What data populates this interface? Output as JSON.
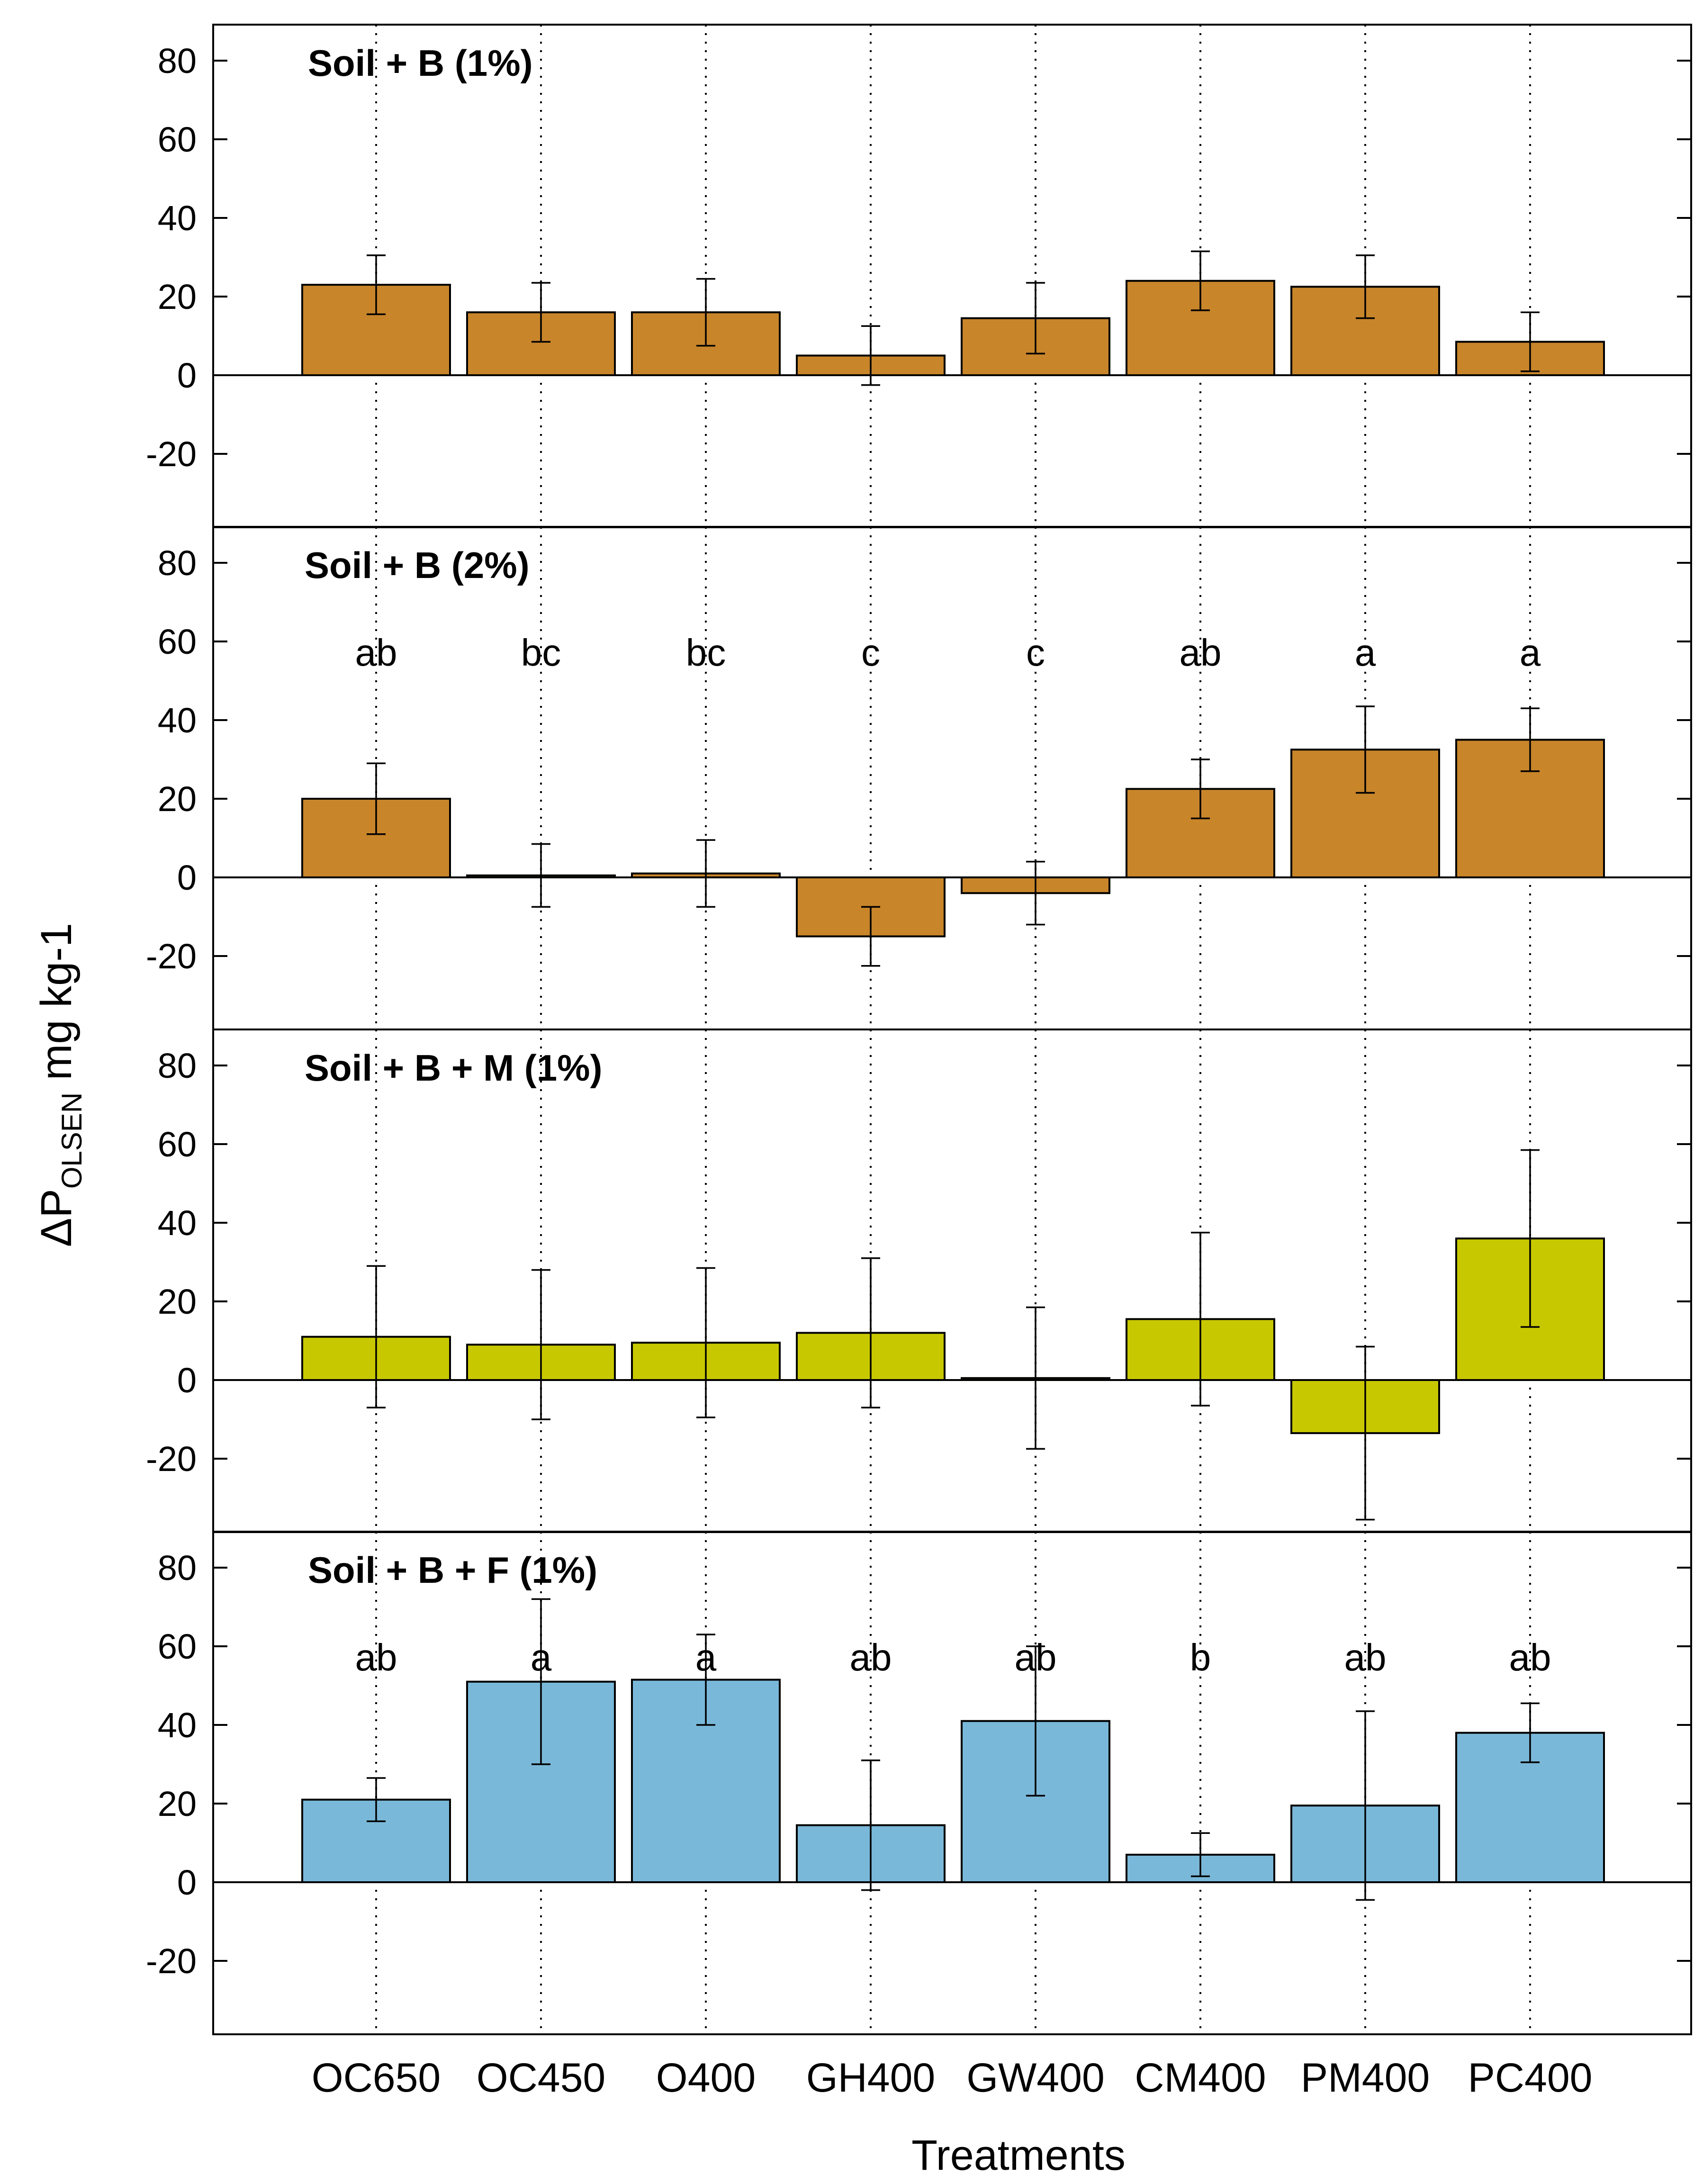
{
  "chart_data": {
    "type": "bar",
    "xlabel": "Treatments",
    "ylabel": {
      "prefix": "ΔP",
      "subscript": "OLSEN",
      "suffix": " mg kg-1"
    },
    "categories": [
      "OC650",
      "OC450",
      "O400",
      "GH400",
      "GW400",
      "CM400",
      "PM400",
      "PC400"
    ],
    "ylim": [
      -40,
      88
    ],
    "yticks": [
      80,
      60,
      40,
      20,
      0,
      -20
    ],
    "grid": "dotted vertical lines at categories",
    "panels": [
      {
        "title": "Soil + B (1%)",
        "color": "#C8852A",
        "values": [
          23,
          16,
          16,
          5,
          14.5,
          24,
          22.5,
          8.5
        ],
        "errors": [
          7.5,
          7.5,
          8.5,
          7.5,
          9,
          7.5,
          8,
          7.5
        ],
        "letters": []
      },
      {
        "title": "Soil + B (2%)",
        "color": "#C8852A",
        "values": [
          20,
          0.5,
          1,
          -15,
          -4,
          22.5,
          32.5,
          35
        ],
        "errors": [
          9,
          8,
          8.5,
          7.5,
          8,
          7.5,
          11,
          8
        ],
        "letters": [
          "ab",
          "bc",
          "bc",
          "c",
          "c",
          "ab",
          "a",
          "a"
        ]
      },
      {
        "title": "Soil + B + M (1%)",
        "color": "#C8C800",
        "values": [
          11,
          9,
          9.5,
          12,
          0.5,
          15.5,
          -13.5,
          36
        ],
        "errors": [
          18,
          19,
          19,
          19,
          18,
          22,
          22,
          22.5
        ],
        "letters": []
      },
      {
        "title": "Soil + B + F (1%)",
        "color": "#7AB8D9",
        "values": [
          21,
          51,
          51.5,
          14.5,
          41,
          7,
          19.5,
          38
        ],
        "errors": [
          5.5,
          21,
          11.5,
          16.5,
          19,
          5.5,
          24,
          7.5
        ],
        "letters": [
          "ab",
          "a",
          "a",
          "ab",
          "ab",
          "b",
          "ab",
          "ab"
        ]
      }
    ]
  }
}
